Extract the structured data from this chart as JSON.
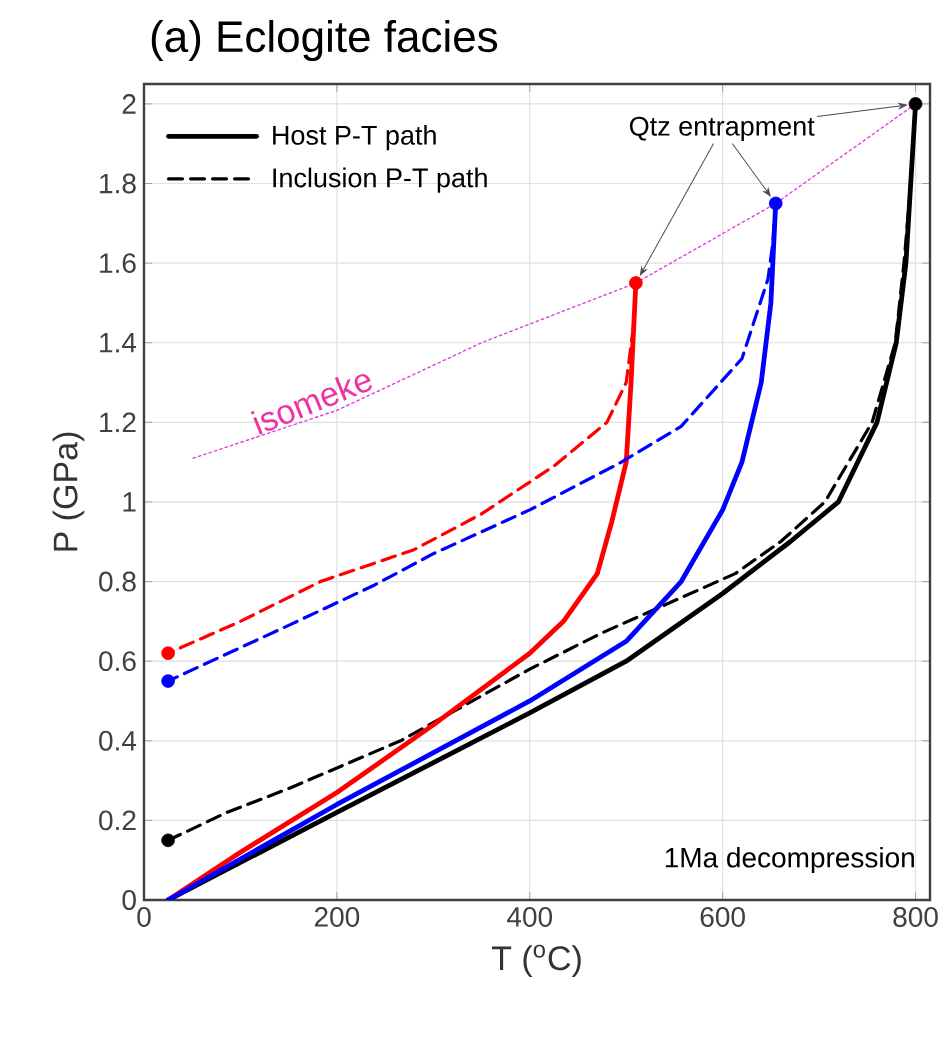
{
  "chart_data": {
    "type": "line",
    "title": "(a) Eclogite facies",
    "xlabel": "T ($^{o}$C)",
    "ylabel": "P (GPa)",
    "xlim": [
      0,
      815
    ],
    "ylim": [
      0,
      2.05
    ],
    "xticks": [
      0,
      200,
      400,
      600,
      800
    ],
    "yticks": [
      0,
      0.2,
      0.4,
      0.6,
      0.8,
      1,
      1.2,
      1.4,
      1.6,
      1.8,
      2
    ],
    "grid": true,
    "legend": "top left",
    "series": [
      {
        "name": "Host P-T path",
        "color": "#000000",
        "line_style": "solid",
        "x": [
          25,
          200,
          400,
          500,
          600,
          670,
          720,
          760,
          780,
          790,
          795,
          800
        ],
        "values": [
          0,
          0.22,
          0.47,
          0.6,
          0.77,
          0.9,
          1.0,
          1.2,
          1.4,
          1.6,
          1.8,
          2.0
        ]
      },
      {
        "name": "Inclusion P-T path",
        "color": "#000000",
        "line_style": "dashed",
        "x": [
          800,
          795,
          788,
          779,
          755,
          706,
          660,
          613,
          474,
          400,
          266,
          150,
          86,
          25
        ],
        "values": [
          2.0,
          1.8,
          1.6,
          1.4,
          1.2,
          1.0,
          0.9,
          0.82,
          0.67,
          0.58,
          0.4,
          0.28,
          0.22,
          0.15
        ]
      },
      {
        "color": "#ff0000",
        "line_style": "solid",
        "x": [
          25,
          100,
          200,
          300,
          400,
          435,
          470,
          485,
          500,
          505,
          510
        ],
        "values": [
          0,
          0.12,
          0.27,
          0.44,
          0.62,
          0.7,
          0.82,
          0.95,
          1.1,
          1.3,
          1.55
        ]
      },
      {
        "color": "#ff0000",
        "line_style": "dashed",
        "x": [
          510,
          508,
          500,
          480,
          425,
          350,
          280,
          183,
          100,
          25
        ],
        "values": [
          1.55,
          1.45,
          1.3,
          1.2,
          1.09,
          0.97,
          0.88,
          0.8,
          0.7,
          0.62
        ]
      },
      {
        "color": "#0000ff",
        "line_style": "solid",
        "x": [
          25,
          200,
          400,
          500,
          557,
          600,
          620,
          640,
          650,
          655
        ],
        "values": [
          0,
          0.24,
          0.5,
          0.65,
          0.8,
          0.98,
          1.1,
          1.3,
          1.5,
          1.75
        ]
      },
      {
        "color": "#0000ff",
        "line_style": "dashed",
        "x": [
          655,
          652,
          647,
          620,
          557,
          495,
          400,
          300,
          238,
          150,
          25
        ],
        "values": [
          1.75,
          1.65,
          1.56,
          1.36,
          1.19,
          1.1,
          0.98,
          0.87,
          0.79,
          0.69,
          0.55
        ]
      },
      {
        "color": "#e040e0",
        "line_style": "dotted",
        "x": [
          51,
          200,
          350,
          510,
          655,
          800
        ],
        "values": [
          1.11,
          1.23,
          1.4,
          1.55,
          1.75,
          2.0
        ]
      },
      {
        "type": "scatter",
        "marker": "circle",
        "x": [
          510,
          655,
          800
        ],
        "values": [
          1.55,
          1.75,
          2.0
        ],
        "colors": [
          "#ff0000",
          "#0000ff",
          "#000000"
        ]
      },
      {
        "type": "scatter",
        "marker": "circle",
        "x": [
          25,
          25,
          25
        ],
        "values": [
          0.62,
          0.55,
          0.15
        ],
        "colors": [
          "#ff0000",
          "#0000ff",
          "#000000"
        ]
      }
    ],
    "annotations": [
      {
        "text": "isomeke",
        "x": 180,
        "y": 1.22
      },
      {
        "text": "Qtz entrapment",
        "x": 510,
        "y": 1.55
      },
      "1Ma decompression"
    ]
  }
}
